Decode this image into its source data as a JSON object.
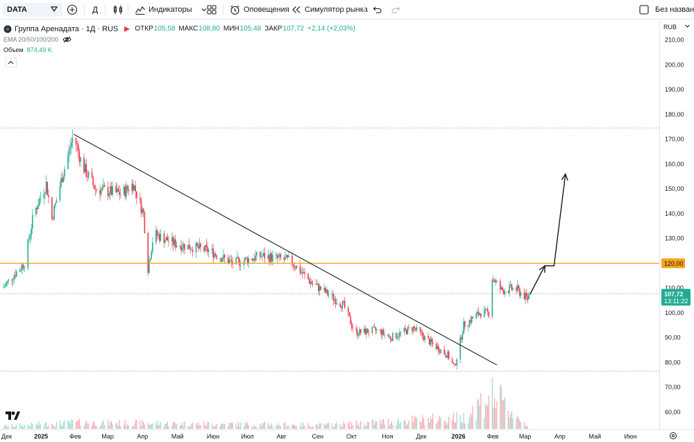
{
  "toolbar": {
    "symbol": "DATA",
    "interval": "Д",
    "indicators_label": "Индикаторы",
    "alerts_label": "Оповещения",
    "replay_label": "Симулятор рынка",
    "layout_name": "Без названи"
  },
  "legend": {
    "title": "Группа Аренадата · 1Д · RUS",
    "open_label": "ОТКР",
    "open": "105,58",
    "high_label": "МАКС",
    "high": "108,80",
    "low_label": "МИН",
    "low": "105,48",
    "close_label": "ЗАКР",
    "close": "107,72",
    "change": "+2,14 (+2,03%)",
    "ema": "EMA 20/50/100/200",
    "volume_label": "Объем",
    "volume": "874,49 K"
  },
  "price_scale": {
    "currency": "RUB",
    "ticks": [
      "210,00",
      "200,00",
      "190,00",
      "180,00",
      "170,00",
      "160,00",
      "150,00",
      "140,00",
      "130,00",
      "120,00",
      "110,00",
      "100,00",
      "90,00",
      "80,00",
      "70,00",
      "60,00"
    ],
    "current_price": "107,72",
    "countdown": "13:11:22",
    "level_label": "120,00"
  },
  "time_scale": {
    "ticks": [
      "Дек",
      "2025",
      "Фев",
      "Мар",
      "Апр",
      "Май",
      "Июн",
      "Июл",
      "Авг",
      "Сен",
      "Окт",
      "Ноя",
      "Дек",
      "2026",
      "Фев",
      "Мар",
      "Апр",
      "Май",
      "Июн"
    ]
  },
  "colors": {
    "up": "#22ab94",
    "down": "#f23645",
    "level": "#f7a21b",
    "trendline": "#2a2e39",
    "grid_dotted": "#9598a1"
  },
  "chart_data": {
    "type": "candlestick",
    "title": "Группа Аренадата",
    "currency": "RUB",
    "ylim": [
      53,
      218
    ],
    "x_range": [
      "2024-12-01",
      "2026-06-25"
    ],
    "last_close": 107.72,
    "horizontal_level": 120.0,
    "dotted_levels": [
      174.5,
      107.72,
      76.5
    ],
    "price_path": [
      {
        "date": "2024-12-01",
        "close": 110
      },
      {
        "date": "2024-12-10",
        "close": 115
      },
      {
        "date": "2024-12-20",
        "close": 120
      },
      {
        "date": "2024-12-28",
        "close": 140
      },
      {
        "date": "2025-01-08",
        "close": 152
      },
      {
        "date": "2025-01-13",
        "close": 138
      },
      {
        "date": "2025-01-22",
        "close": 155
      },
      {
        "date": "2025-02-01",
        "close": 172
      },
      {
        "date": "2025-02-08",
        "close": 160
      },
      {
        "date": "2025-02-20",
        "close": 150
      },
      {
        "date": "2025-03-15",
        "close": 148
      },
      {
        "date": "2025-03-25",
        "close": 152
      },
      {
        "date": "2025-04-03",
        "close": 140
      },
      {
        "date": "2025-04-07",
        "close": 118
      },
      {
        "date": "2025-04-12",
        "close": 132
      },
      {
        "date": "2025-04-30",
        "close": 128
      },
      {
        "date": "2025-05-31",
        "close": 125
      },
      {
        "date": "2025-06-20",
        "close": 120
      },
      {
        "date": "2025-07-15",
        "close": 123
      },
      {
        "date": "2025-08-10",
        "close": 121
      },
      {
        "date": "2025-08-28",
        "close": 112
      },
      {
        "date": "2025-09-10",
        "close": 108
      },
      {
        "date": "2025-09-25",
        "close": 103
      },
      {
        "date": "2025-10-05",
        "close": 92
      },
      {
        "date": "2025-10-25",
        "close": 93
      },
      {
        "date": "2025-11-05",
        "close": 90
      },
      {
        "date": "2025-11-25",
        "close": 94
      },
      {
        "date": "2025-12-10",
        "close": 88
      },
      {
        "date": "2025-12-25",
        "close": 83
      },
      {
        "date": "2025-12-31",
        "close": 78
      },
      {
        "date": "2026-01-08",
        "close": 95
      },
      {
        "date": "2026-01-22",
        "close": 100
      },
      {
        "date": "2026-01-30",
        "close": 100
      },
      {
        "date": "2026-02-01",
        "close": 115
      },
      {
        "date": "2026-02-10",
        "close": 109
      },
      {
        "date": "2026-02-22",
        "close": 110
      },
      {
        "date": "2026-03-05",
        "close": 105.58
      },
      {
        "date": "2026-03-06",
        "close": 107.72
      }
    ],
    "trendline": {
      "from": {
        "date": "2025-02-01",
        "price": 172
      },
      "to": {
        "date": "2026-02-06",
        "price": 79
      }
    },
    "forecast_arrow": [
      {
        "date": "2026-03-07",
        "price": 107.5
      },
      {
        "date": "2026-03-20",
        "price": 119
      },
      {
        "date": "2026-03-28",
        "price": 119
      },
      {
        "date": "2026-04-07",
        "price": 156
      }
    ],
    "volume_path": [
      {
        "date": "2024-12-01",
        "volume": 1
      },
      {
        "date": "2025-02-01",
        "volume": 2.5
      },
      {
        "date": "2025-04-07",
        "volume": 2.2
      },
      {
        "date": "2025-09-10",
        "volume": 1.5
      },
      {
        "date": "2026-01-08",
        "volume": 4.5
      },
      {
        "date": "2026-02-01",
        "volume": 14
      },
      {
        "date": "2026-03-06",
        "volume": 0.87
      }
    ]
  }
}
